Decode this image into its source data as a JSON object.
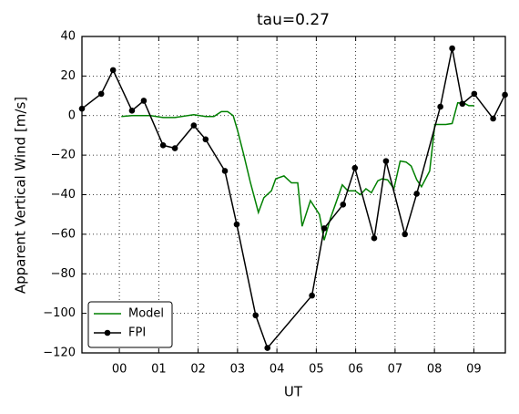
{
  "chart_data": {
    "type": "line",
    "title": "tau=0.27",
    "x_label": "UT",
    "y_label": "Apparent Vertical Wind [m/s]",
    "xlim": [
      -0.95,
      9.8
    ],
    "ylim": [
      -120,
      40
    ],
    "xticks": [
      {
        "value": 0,
        "label": "00"
      },
      {
        "value": 1,
        "label": "01"
      },
      {
        "value": 2,
        "label": "02"
      },
      {
        "value": 3,
        "label": "03"
      },
      {
        "value": 4,
        "label": "04"
      },
      {
        "value": 5,
        "label": "05"
      },
      {
        "value": 6,
        "label": "06"
      },
      {
        "value": 7,
        "label": "07"
      },
      {
        "value": 8,
        "label": "08"
      },
      {
        "value": 9,
        "label": "09"
      }
    ],
    "yticks": [
      {
        "value": -120,
        "label": "−120"
      },
      {
        "value": -100,
        "label": "−100"
      },
      {
        "value": -80,
        "label": "−80"
      },
      {
        "value": -60,
        "label": "−60"
      },
      {
        "value": -40,
        "label": "−40"
      },
      {
        "value": -20,
        "label": "−20"
      },
      0,
      20,
      40
    ],
    "grid": true,
    "legend": "lower left",
    "series": [
      {
        "name": "Model",
        "color": "#008000",
        "markers": false,
        "x": [
          0.05,
          0.32,
          0.79,
          1.11,
          1.41,
          1.89,
          2.19,
          2.4,
          2.59,
          2.75,
          2.89,
          3.0,
          3.16,
          3.33,
          3.53,
          3.67,
          3.86,
          3.97,
          4.18,
          4.37,
          4.53,
          4.64,
          4.85,
          5.08,
          5.2,
          5.36,
          5.66,
          5.8,
          5.98,
          6.12,
          6.26,
          6.4,
          6.56,
          6.67,
          6.81,
          6.97,
          7.13,
          7.28,
          7.41,
          7.55,
          7.67,
          7.88,
          8.01,
          8.29,
          8.45,
          8.59,
          8.78,
          8.87,
          9.01
        ],
        "values": [
          -0.5,
          0,
          0,
          -1,
          -1,
          0.5,
          -0.5,
          -0.5,
          2,
          2,
          0,
          -7.5,
          -20,
          -34,
          -49,
          -41.5,
          -38,
          -32,
          -30.5,
          -34,
          -34,
          -56,
          -43,
          -50,
          -63,
          -52,
          -35,
          -38,
          -38,
          -40,
          -37,
          -39,
          -33,
          -32,
          -32.5,
          -37,
          -23,
          -23.5,
          -25.5,
          -32.5,
          -36,
          -28,
          -4.5,
          -4.5,
          -4,
          6.5,
          6,
          5,
          5
        ]
      },
      {
        "name": "FPI",
        "color": "#000000",
        "markers": true,
        "x": [
          -0.95,
          -0.46,
          -0.16,
          0.32,
          0.62,
          1.11,
          1.41,
          1.89,
          2.19,
          2.68,
          2.98,
          3.46,
          3.76,
          4.89,
          5.2,
          5.68,
          5.98,
          6.47,
          6.77,
          7.25,
          7.55,
          8.15,
          8.45,
          8.71,
          9.01,
          9.49,
          9.79
        ],
        "values": [
          3.5,
          11,
          23,
          2.5,
          7.5,
          -15,
          -16.5,
          -5,
          -12,
          -28,
          -55,
          -101,
          -117.5,
          -91,
          -57,
          -45,
          -26.5,
          -62,
          -23,
          -60,
          -39.5,
          4.5,
          34,
          6,
          11,
          -1.5,
          10.5
        ]
      }
    ]
  }
}
